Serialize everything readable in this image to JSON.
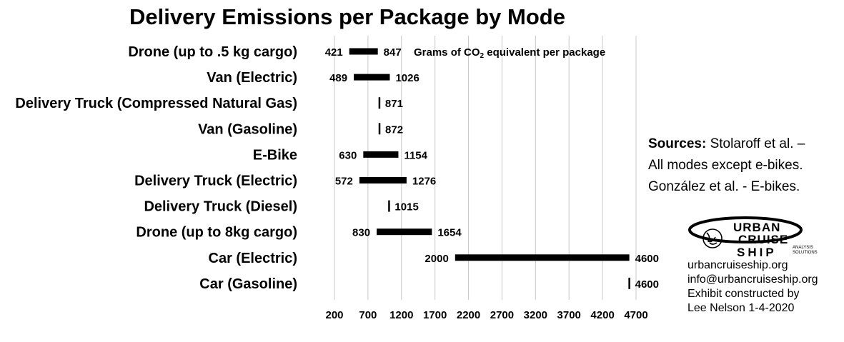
{
  "chart_data": {
    "type": "range-bar",
    "title": "Delivery Emissions per Package by Mode",
    "unit_note": {
      "prefix": "Grams of CO",
      "sub": "2",
      "suffix": " equivalent per package"
    },
    "xlim": [
      200,
      4700
    ],
    "x_ticks": [
      "200",
      "700",
      "1200",
      "1700",
      "2200",
      "2700",
      "3200",
      "3700",
      "4200",
      "4700"
    ],
    "grid": "vertical",
    "categories": [
      "Drone (up to .5 kg cargo)",
      "Van (Electric)",
      "Delivery Truck (Compressed Natural Gas)",
      "Van (Gasoline)",
      "E-Bike",
      "Delivery Truck (Electric)",
      "Delivery Truck (Diesel)",
      "Drone (up to 8kg cargo)",
      "Car (Electric)",
      "Car (Gasoline)"
    ],
    "ranges": [
      {
        "low": 421,
        "high": 847,
        "low_label": "421",
        "high_label": "847"
      },
      {
        "low": 489,
        "high": 1026,
        "low_label": "489",
        "high_label": "1026"
      },
      {
        "low": 871,
        "high": 871,
        "low_label": "",
        "high_label": "871"
      },
      {
        "low": 872,
        "high": 872,
        "low_label": "",
        "high_label": "872"
      },
      {
        "low": 630,
        "high": 1154,
        "low_label": "630",
        "high_label": "1154"
      },
      {
        "low": 572,
        "high": 1276,
        "low_label": "572",
        "high_label": "1276"
      },
      {
        "low": 1015,
        "high": 1015,
        "low_label": "",
        "high_label": "1015"
      },
      {
        "low": 830,
        "high": 1654,
        "low_label": "830",
        "high_label": "1654"
      },
      {
        "low": 2000,
        "high": 4600,
        "low_label": "2000",
        "high_label": "4600"
      },
      {
        "low": 4600,
        "high": 4600,
        "low_label": "",
        "high_label": "4600"
      }
    ],
    "bar_color": "#000000",
    "grid_color": "#c8c8c8"
  },
  "sources": {
    "heading": "Sources:",
    "line1": " Stolaroff et al. –",
    "line2": "All modes except e-bikes.",
    "line3": "González et al. - E-bikes."
  },
  "logo": {
    "word1": "URBAN",
    "word2": "CRUISE",
    "word3": "SHIP",
    "tag1": "ANALYSIS",
    "tag2": "SOLUTIONS"
  },
  "contact": {
    "website": "urbancruiseship.org",
    "email": "info@urbancruiseship.org",
    "credit1": "Exhibit constructed by",
    "credit2": "Lee Nelson 1-4-2020"
  }
}
